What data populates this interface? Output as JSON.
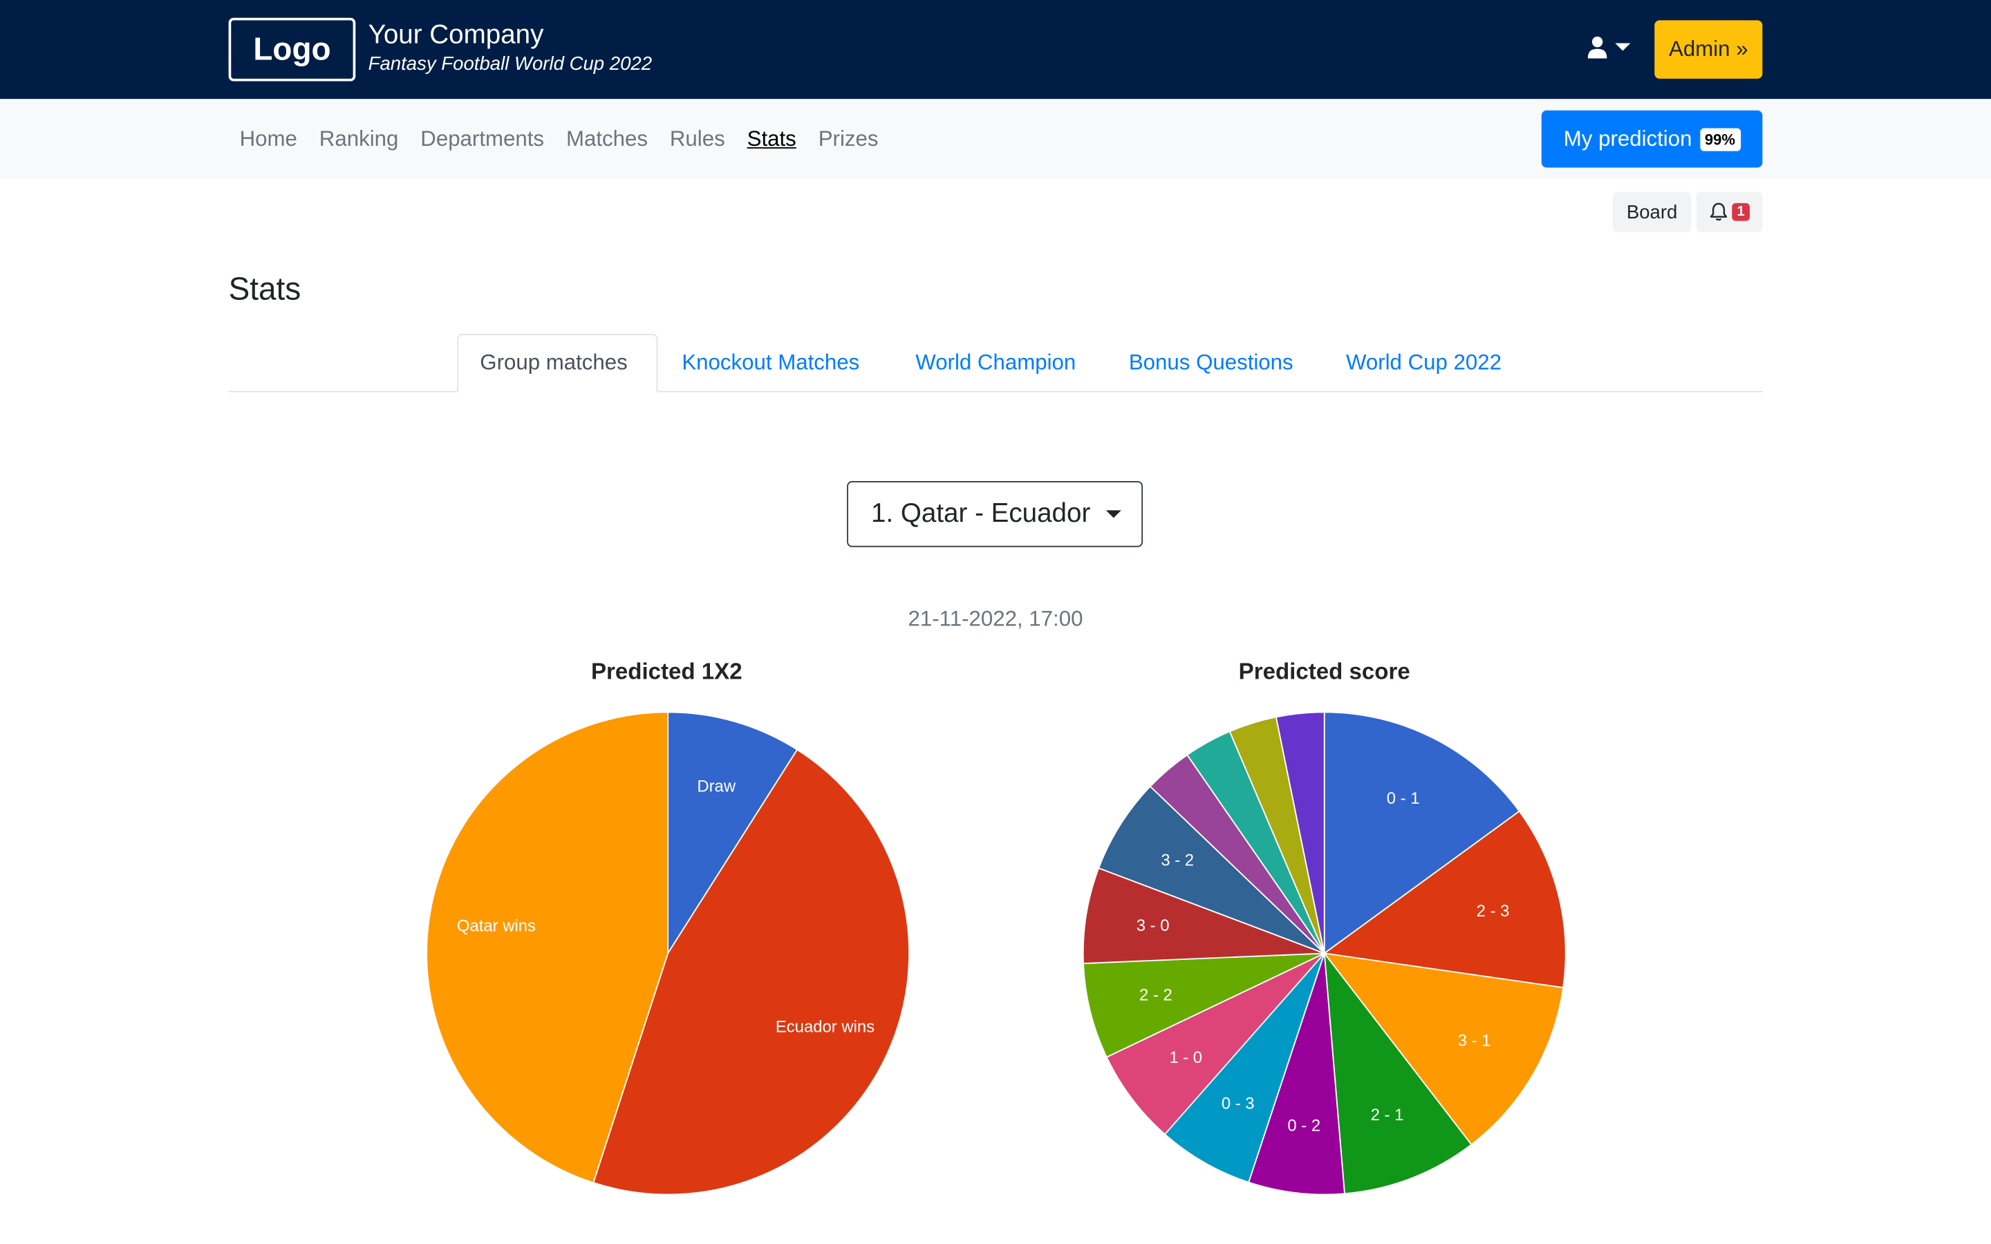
{
  "header": {
    "logo_text": "Logo",
    "company_name": "Your Company",
    "subtitle": "Fantasy Football World Cup 2022",
    "admin_label": "Admin »"
  },
  "nav": {
    "items": [
      {
        "label": "Home",
        "active": false
      },
      {
        "label": "Ranking",
        "active": false
      },
      {
        "label": "Departments",
        "active": false
      },
      {
        "label": "Matches",
        "active": false
      },
      {
        "label": "Rules",
        "active": false
      },
      {
        "label": "Stats",
        "active": true
      },
      {
        "label": "Prizes",
        "active": false
      }
    ],
    "my_prediction_label": "My prediction",
    "my_prediction_percent": "99%"
  },
  "toolbar": {
    "board_label": "Board",
    "notification_count": "1"
  },
  "page": {
    "title": "Stats",
    "tabs": [
      {
        "label": "Group matches",
        "active": true
      },
      {
        "label": "Knockout Matches",
        "active": false
      },
      {
        "label": "World Champion",
        "active": false
      },
      {
        "label": "Bonus Questions",
        "active": false
      },
      {
        "label": "World Cup 2022",
        "active": false
      }
    ],
    "selected_match": "1. Qatar - Ecuador",
    "match_datetime": "21-11-2022, 17:00"
  },
  "colors": {
    "header_bg": "#001e45",
    "admin_button": "#ffc107",
    "primary": "#007bff",
    "notification_badge": "#dc3545"
  },
  "chart_data": [
    {
      "type": "pie",
      "title": "Predicted 1X2",
      "slices": [
        {
          "label": "Draw",
          "value": 9,
          "color": "#3366cc"
        },
        {
          "label": "Ecuador wins",
          "value": 46,
          "color": "#dc3912"
        },
        {
          "label": "Qatar wins",
          "value": 45,
          "color": "#ff9900"
        }
      ]
    },
    {
      "type": "pie",
      "title": "Predicted score",
      "slices": [
        {
          "label": "0 - 1",
          "value": 14,
          "color": "#3366cc"
        },
        {
          "label": "2 - 3",
          "value": 11.5,
          "color": "#dc3912"
        },
        {
          "label": "3 - 1",
          "value": 11.5,
          "color": "#ff9900"
        },
        {
          "label": "2 - 1",
          "value": 8.5,
          "color": "#109618"
        },
        {
          "label": "0 - 2",
          "value": 6,
          "color": "#990099"
        },
        {
          "label": "0 - 3",
          "value": 6,
          "color": "#0099c6"
        },
        {
          "label": "1 - 0",
          "value": 6,
          "color": "#dd4477"
        },
        {
          "label": "2 - 2",
          "value": 6,
          "color": "#66aa00"
        },
        {
          "label": "3 - 0",
          "value": 6,
          "color": "#b82e2e"
        },
        {
          "label": "3 - 2",
          "value": 6,
          "color": "#316395"
        },
        {
          "label": "",
          "value": 3,
          "color": "#994499"
        },
        {
          "label": "",
          "value": 3,
          "color": "#22aa99"
        },
        {
          "label": "",
          "value": 3,
          "color": "#aaaa11"
        },
        {
          "label": "",
          "value": 3,
          "color": "#6633cc"
        }
      ]
    }
  ]
}
